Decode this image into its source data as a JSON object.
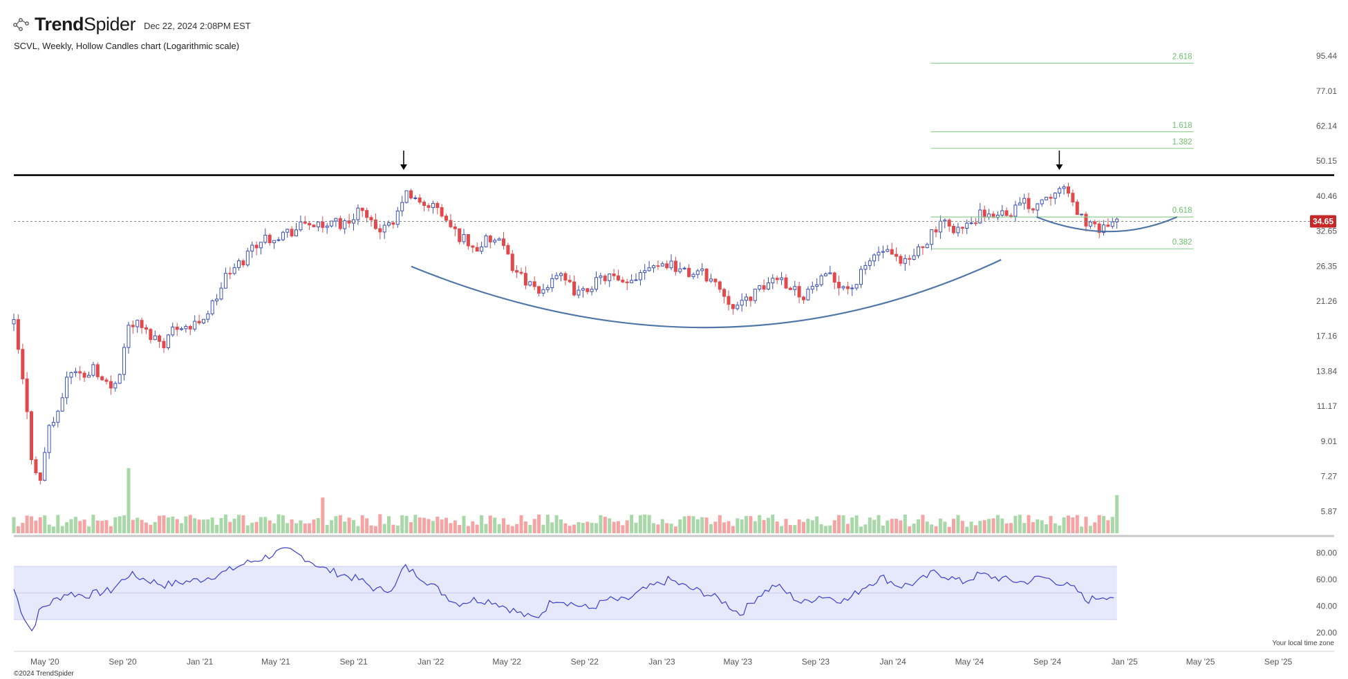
{
  "header": {
    "brand_bold": "Trend",
    "brand_light": "Spider",
    "timestamp": "Dec 22, 2024 2:08PM EST"
  },
  "chart_title": "SCVL, Weekly, Hollow Candles chart (Logarithmic scale)",
  "footer": {
    "copyright": "©2024 TrendSpider",
    "timezone": "Your local time zone"
  },
  "colors": {
    "up": "#3b4fb5",
    "down": "#e2494b",
    "volume_up": "#a8d8a8",
    "volume_down": "#f5a3a3",
    "rsi_line": "#3a3fd0",
    "rsi_band": "#e6e8fb",
    "fib": "#8fd18f",
    "arc": "#4f76a8",
    "price_tag": "#c62828"
  },
  "chart_data": [
    {
      "type": "candlestick",
      "title": "SCVL, Weekly, Hollow Candles chart (Logarithmic scale)",
      "scale": "log",
      "y_ticks": [
        "95.44",
        "77.01",
        "62.14",
        "50.15",
        "40.46",
        "32.65",
        "26.35",
        "21.26",
        "17.16",
        "13.84",
        "11.17",
        "9.01",
        "7.27",
        "5.87"
      ],
      "x_ticks": [
        "May '20",
        "Sep '20",
        "Jan '21",
        "May '21",
        "Sep '21",
        "Jan '22",
        "May '22",
        "Sep '22",
        "Jan '23",
        "May '23",
        "Sep '23",
        "Jan '24",
        "May '24",
        "Sep '24",
        "Jan '25",
        "May '25",
        "Sep '25"
      ],
      "last_price": "34.65",
      "resistance_level": 46.0,
      "peaks": [
        "Nov '21",
        "Sep '24"
      ],
      "fib_levels": [
        {
          "label": "2.618",
          "value": 91.3
        },
        {
          "label": "1.618",
          "value": 60.0
        },
        {
          "label": "1.382",
          "value": 54.2
        },
        {
          "label": "0.618",
          "value": 35.6
        },
        {
          "label": "0.382",
          "value": 29.3
        }
      ],
      "price_path": [
        [
          "2020-03-13",
          18.5
        ],
        [
          "2020-03-27",
          13.0
        ],
        [
          "2020-04-10",
          8.2
        ],
        [
          "2020-04-24",
          7.0
        ],
        [
          "2020-05-08",
          10.0
        ],
        [
          "2020-05-22",
          10.5
        ],
        [
          "2020-06-05",
          13.5
        ],
        [
          "2020-06-19",
          14.0
        ],
        [
          "2020-07-03",
          13.2
        ],
        [
          "2020-07-17",
          14.5
        ],
        [
          "2020-07-31",
          13.0
        ],
        [
          "2020-08-14",
          12.5
        ],
        [
          "2020-08-28",
          14.0
        ],
        [
          "2020-09-11",
          18.5
        ],
        [
          "2020-09-25",
          18.5
        ],
        [
          "2020-10-09",
          17.5
        ],
        [
          "2020-10-23",
          17.0
        ],
        [
          "2020-11-06",
          16.5
        ],
        [
          "2020-11-20",
          18.0
        ],
        [
          "2020-12-04",
          18.5
        ],
        [
          "2020-12-18",
          18.0
        ],
        [
          "2021-01-01",
          19.0
        ],
        [
          "2021-01-15",
          20.0
        ],
        [
          "2021-01-29",
          22.0
        ],
        [
          "2021-02-12",
          25.0
        ],
        [
          "2021-02-26",
          26.0
        ],
        [
          "2021-03-12",
          27.5
        ],
        [
          "2021-03-26",
          30.0
        ],
        [
          "2021-04-09",
          31.0
        ],
        [
          "2021-04-23",
          31.5
        ],
        [
          "2021-05-07",
          32.0
        ],
        [
          "2021-05-21",
          32.5
        ],
        [
          "2021-06-04",
          33.0
        ],
        [
          "2021-06-18",
          34.5
        ],
        [
          "2021-07-02",
          34.0
        ],
        [
          "2021-07-16",
          32.5
        ],
        [
          "2021-07-30",
          36.0
        ],
        [
          "2021-08-13",
          33.5
        ],
        [
          "2021-08-27",
          35.0
        ],
        [
          "2021-09-10",
          38.0
        ],
        [
          "2021-09-24",
          34.0
        ],
        [
          "2021-10-08",
          33.5
        ],
        [
          "2021-10-22",
          33.0
        ],
        [
          "2021-11-05",
          34.0
        ],
        [
          "2021-11-19",
          41.0
        ],
        [
          "2021-12-03",
          40.0
        ],
        [
          "2021-12-17",
          38.0
        ],
        [
          "2021-12-31",
          38.5
        ],
        [
          "2022-01-14",
          37.0
        ],
        [
          "2022-01-28",
          34.0
        ],
        [
          "2022-02-11",
          32.0
        ],
        [
          "2022-02-25",
          31.0
        ],
        [
          "2022-03-11",
          29.0
        ],
        [
          "2022-03-25",
          30.5
        ],
        [
          "2022-04-08",
          31.0
        ],
        [
          "2022-04-22",
          30.0
        ],
        [
          "2022-05-06",
          27.0
        ],
        [
          "2022-05-20",
          25.0
        ],
        [
          "2022-06-03",
          24.0
        ],
        [
          "2022-06-17",
          22.0
        ],
        [
          "2022-07-01",
          23.0
        ],
        [
          "2022-07-15",
          25.5
        ],
        [
          "2022-07-29",
          24.0
        ],
        [
          "2022-08-12",
          23.0
        ],
        [
          "2022-08-26",
          22.0
        ],
        [
          "2022-09-09",
          23.5
        ],
        [
          "2022-09-23",
          24.0
        ],
        [
          "2022-10-07",
          25.0
        ],
        [
          "2022-10-21",
          24.0
        ],
        [
          "2022-11-04",
          23.0
        ],
        [
          "2022-11-18",
          24.5
        ],
        [
          "2022-12-02",
          26.0
        ],
        [
          "2022-12-16",
          27.0
        ],
        [
          "2022-12-30",
          26.5
        ],
        [
          "2023-01-13",
          27.0
        ],
        [
          "2023-01-27",
          26.0
        ],
        [
          "2023-02-10",
          25.0
        ],
        [
          "2023-02-24",
          25.5
        ],
        [
          "2023-03-10",
          25.0
        ],
        [
          "2023-03-24",
          24.0
        ],
        [
          "2023-04-07",
          22.5
        ],
        [
          "2023-04-21",
          21.0
        ],
        [
          "2023-05-05",
          20.5
        ],
        [
          "2023-05-19",
          22.0
        ],
        [
          "2023-06-02",
          22.5
        ],
        [
          "2023-06-16",
          23.5
        ],
        [
          "2023-06-30",
          25.0
        ],
        [
          "2023-07-14",
          24.0
        ],
        [
          "2023-07-28",
          23.0
        ],
        [
          "2023-08-11",
          22.0
        ],
        [
          "2023-08-25",
          23.0
        ],
        [
          "2023-09-08",
          24.0
        ],
        [
          "2023-09-22",
          24.5
        ],
        [
          "2023-10-06",
          24.0
        ],
        [
          "2023-10-20",
          23.0
        ],
        [
          "2023-11-03",
          23.5
        ],
        [
          "2023-11-17",
          26.0
        ],
        [
          "2023-12-01",
          28.0
        ],
        [
          "2023-12-15",
          29.0
        ],
        [
          "2023-12-29",
          28.0
        ],
        [
          "2024-01-12",
          26.5
        ],
        [
          "2024-01-26",
          27.0
        ],
        [
          "2024-02-09",
          29.0
        ],
        [
          "2024-02-23",
          31.0
        ],
        [
          "2024-03-08",
          33.0
        ],
        [
          "2024-03-22",
          34.0
        ],
        [
          "2024-04-05",
          33.5
        ],
        [
          "2024-04-19",
          33.0
        ],
        [
          "2024-05-03",
          34.0
        ],
        [
          "2024-05-17",
          36.0
        ],
        [
          "2024-05-31",
          35.0
        ],
        [
          "2024-06-14",
          37.0
        ],
        [
          "2024-06-28",
          36.5
        ],
        [
          "2024-07-12",
          37.5
        ],
        [
          "2024-07-26",
          39.0
        ],
        [
          "2024-08-09",
          38.0
        ],
        [
          "2024-08-23",
          40.0
        ],
        [
          "2024-09-06",
          41.0
        ],
        [
          "2024-09-20",
          44.0
        ],
        [
          "2024-10-04",
          40.0
        ],
        [
          "2024-10-18",
          37.0
        ],
        [
          "2024-11-01",
          34.5
        ],
        [
          "2024-11-15",
          33.0
        ],
        [
          "2024-11-29",
          34.0
        ],
        [
          "2024-12-13",
          33.5
        ],
        [
          "2024-12-20",
          34.65
        ]
      ],
      "volume_spikes": [
        [
          "2020-09-11",
          8.2
        ],
        [
          "2021-07-16",
          4.5
        ],
        [
          "2024-12-20",
          4.8
        ]
      ]
    },
    {
      "type": "line",
      "name": "RSI",
      "y_ticks": [
        "80.00",
        "60.00",
        "40.00",
        "20.00"
      ],
      "band": [
        30,
        70
      ],
      "midline": 50,
      "values": [
        [
          "2020-03-13",
          53
        ],
        [
          "2020-03-27",
          34
        ],
        [
          "2020-04-10",
          21
        ],
        [
          "2020-04-24",
          38
        ],
        [
          "2020-05-08",
          42
        ],
        [
          "2020-05-22",
          46
        ],
        [
          "2020-06-05",
          50
        ],
        [
          "2020-07-03",
          48
        ],
        [
          "2020-08-14",
          52
        ],
        [
          "2020-09-11",
          64
        ],
        [
          "2020-10-09",
          60
        ],
        [
          "2020-11-06",
          56
        ],
        [
          "2020-12-04",
          58
        ],
        [
          "2021-01-01",
          60
        ],
        [
          "2021-02-12",
          66
        ],
        [
          "2021-03-12",
          72
        ],
        [
          "2021-04-09",
          76
        ],
        [
          "2021-05-07",
          81
        ],
        [
          "2021-05-21",
          82
        ],
        [
          "2021-06-18",
          76
        ],
        [
          "2021-07-16",
          68
        ],
        [
          "2021-08-13",
          64
        ],
        [
          "2021-09-10",
          60
        ],
        [
          "2021-10-08",
          52
        ],
        [
          "2021-11-05",
          54
        ],
        [
          "2021-11-19",
          70
        ],
        [
          "2021-12-17",
          62
        ],
        [
          "2022-01-14",
          52
        ],
        [
          "2022-02-11",
          42
        ],
        [
          "2022-03-11",
          45
        ],
        [
          "2022-04-08",
          44
        ],
        [
          "2022-05-06",
          38
        ],
        [
          "2022-06-03",
          32
        ],
        [
          "2022-06-17",
          31
        ],
        [
          "2022-07-15",
          46
        ],
        [
          "2022-08-12",
          42
        ],
        [
          "2022-09-09",
          38
        ],
        [
          "2022-10-07",
          45
        ],
        [
          "2022-11-04",
          44
        ],
        [
          "2022-12-02",
          52
        ],
        [
          "2023-01-13",
          60
        ],
        [
          "2023-02-10",
          54
        ],
        [
          "2023-03-10",
          50
        ],
        [
          "2023-04-07",
          44
        ],
        [
          "2023-05-05",
          34
        ],
        [
          "2023-06-02",
          48
        ],
        [
          "2023-06-30",
          56
        ],
        [
          "2023-08-11",
          42
        ],
        [
          "2023-09-08",
          48
        ],
        [
          "2023-10-20",
          44
        ],
        [
          "2023-11-17",
          55
        ],
        [
          "2023-12-15",
          62
        ],
        [
          "2024-01-12",
          55
        ],
        [
          "2024-02-09",
          58
        ],
        [
          "2024-03-08",
          66
        ],
        [
          "2024-04-19",
          58
        ],
        [
          "2024-05-17",
          64
        ],
        [
          "2024-06-28",
          60
        ],
        [
          "2024-07-26",
          58
        ],
        [
          "2024-08-23",
          62
        ],
        [
          "2024-09-20",
          58
        ],
        [
          "2024-10-18",
          52
        ],
        [
          "2024-11-01",
          44
        ],
        [
          "2024-11-29",
          48
        ],
        [
          "2024-12-20",
          47
        ]
      ]
    }
  ]
}
